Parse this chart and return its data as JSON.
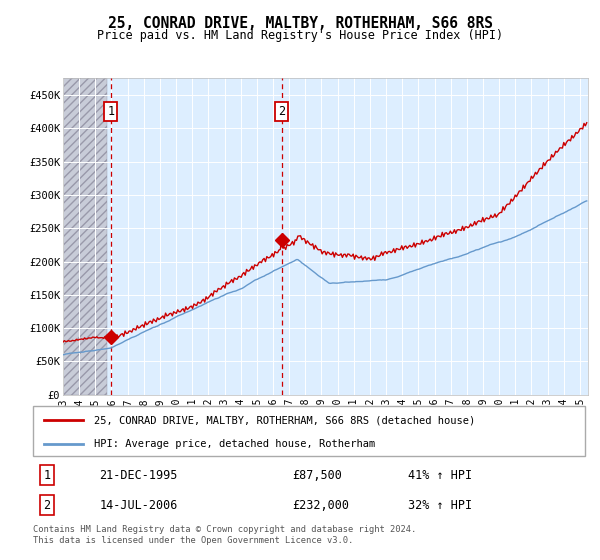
{
  "title": "25, CONRAD DRIVE, MALTBY, ROTHERHAM, S66 8RS",
  "subtitle": "Price paid vs. HM Land Registry's House Price Index (HPI)",
  "legend_line1": "25, CONRAD DRIVE, MALTBY, ROTHERHAM, S66 8RS (detached house)",
  "legend_line2": "HPI: Average price, detached house, Rotherham",
  "footer": "Contains HM Land Registry data © Crown copyright and database right 2024.\nThis data is licensed under the Open Government Licence v3.0.",
  "transaction1": {
    "label": "1",
    "date": "21-DEC-1995",
    "price": "£87,500",
    "hpi": "41% ↑ HPI",
    "x_year": 1995.97,
    "y_value": 87500
  },
  "transaction2": {
    "label": "2",
    "date": "14-JUL-2006",
    "price": "£232,000",
    "hpi": "32% ↑ HPI",
    "x_year": 2006.54,
    "y_value": 232000
  },
  "hpi_color": "#6699cc",
  "price_color": "#cc0000",
  "background_plot": "#ddeeff",
  "background_hatch_color": "#c8ccd8",
  "grid_color": "#ffffff",
  "ylim": [
    0,
    475000
  ],
  "xlim_start": 1993.0,
  "xlim_end": 2025.5,
  "hatch_end": 1995.75,
  "yticks": [
    0,
    50000,
    100000,
    150000,
    200000,
    250000,
    300000,
    350000,
    400000,
    450000
  ],
  "ytick_labels": [
    "£0",
    "£50K",
    "£100K",
    "£150K",
    "£200K",
    "£250K",
    "£300K",
    "£350K",
    "£400K",
    "£450K"
  ],
  "xtick_years": [
    1993,
    1994,
    1995,
    1996,
    1997,
    1998,
    1999,
    2000,
    2001,
    2002,
    2003,
    2004,
    2005,
    2006,
    2007,
    2008,
    2009,
    2010,
    2011,
    2012,
    2013,
    2014,
    2015,
    2016,
    2017,
    2018,
    2019,
    2020,
    2021,
    2022,
    2023,
    2024,
    2025
  ]
}
